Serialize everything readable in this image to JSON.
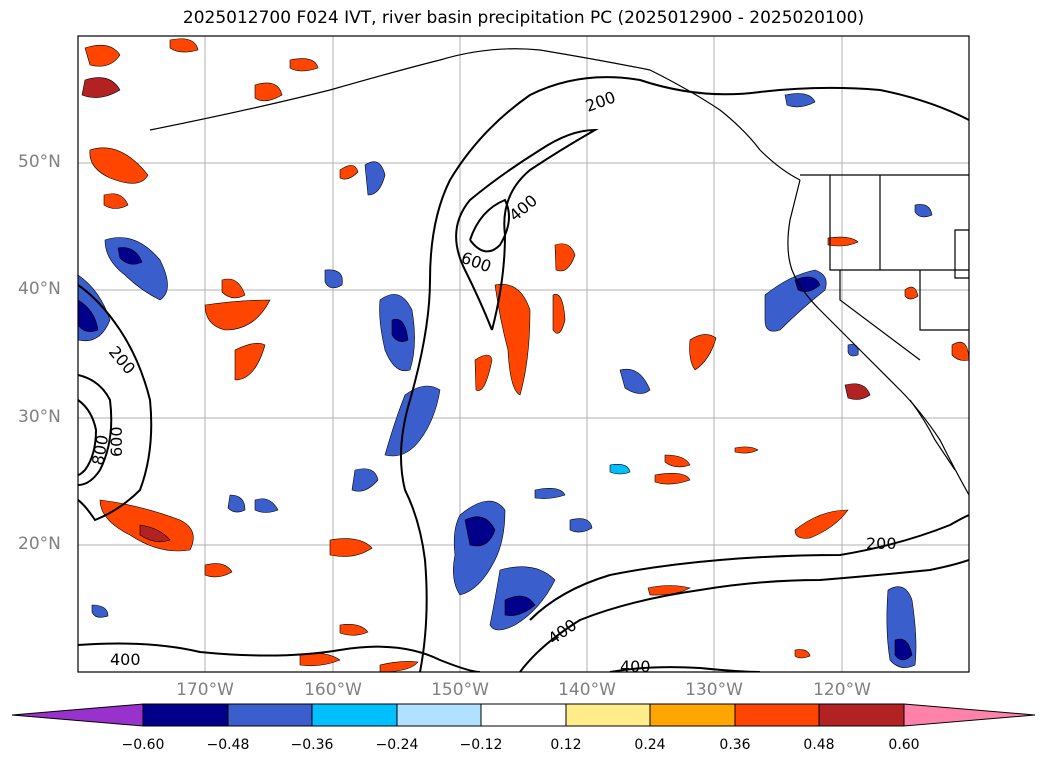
{
  "title": "2025012700 F024 IVT, river basin precipitation PC (2025012900 - 2025020100)",
  "lat_labels": [
    "50°N",
    "40°N",
    "30°N",
    "20°N"
  ],
  "lon_labels": [
    "170°W",
    "160°W",
    "150°W",
    "140°W",
    "130°W",
    "120°W"
  ],
  "contour_labels": [
    "200",
    "400",
    "600",
    "200",
    "600",
    "800",
    "200",
    "400",
    "400",
    "400"
  ],
  "colorbar": {
    "ticks": [
      "−0.60",
      "−0.48",
      "−0.36",
      "−0.24",
      "−0.12",
      "0.12",
      "0.24",
      "0.36",
      "0.48",
      "0.60"
    ],
    "colors": [
      "#9932cc",
      "#00008b",
      "#3a5fcd",
      "#00bfff",
      "#b0e2ff",
      "#ffffff",
      "#ffec8b",
      "#ffa500",
      "#ff4500",
      "#b22222",
      "#ff82ab"
    ]
  }
}
